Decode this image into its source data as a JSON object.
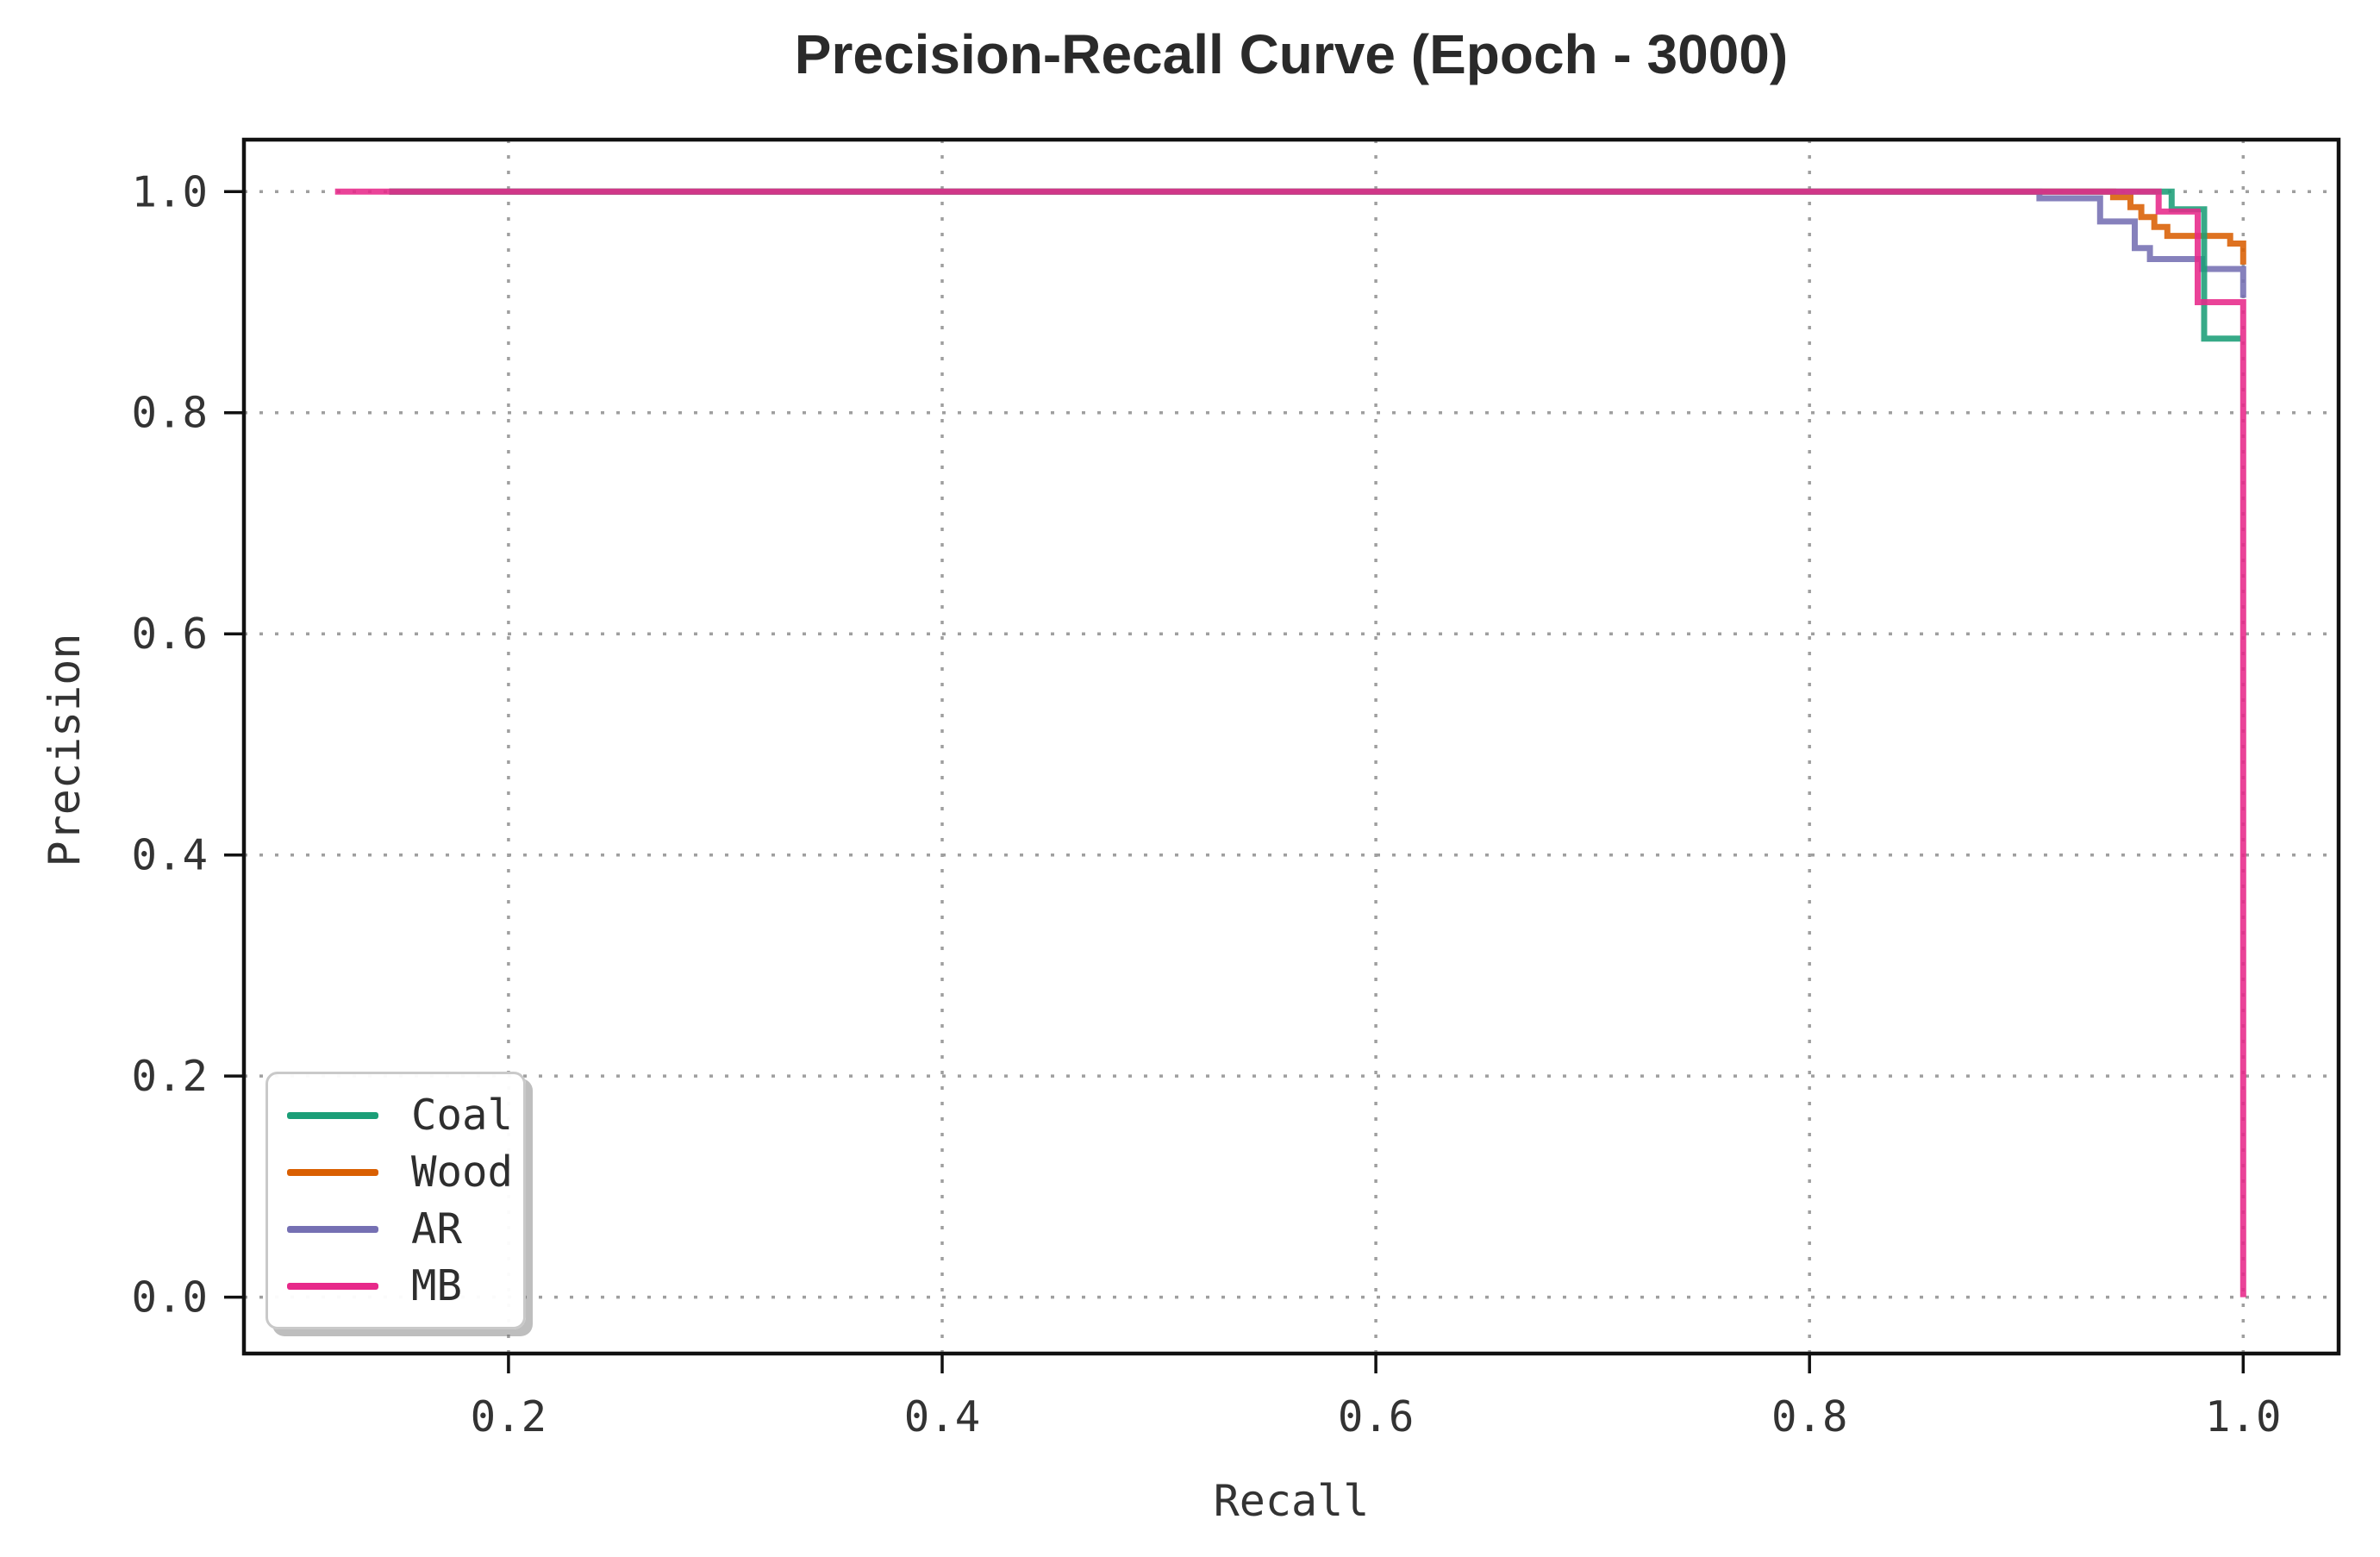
{
  "title": "Precision-Recall Curve (Epoch - 3000)",
  "chart_data": {
    "type": "line",
    "line_style": "step-post",
    "title": "Precision-Recall Curve (Epoch - 3000)",
    "xlabel": "Recall",
    "ylabel": "Precision",
    "xlim": [
      0.078,
      1.044
    ],
    "ylim": [
      -0.051,
      1.047
    ],
    "grid": "dotted",
    "legend_position": "lower left",
    "x_ticks": [
      {
        "v": 0.2,
        "label": "0.2"
      },
      {
        "v": 0.4,
        "label": "0.4"
      },
      {
        "v": 0.6,
        "label": "0.6"
      },
      {
        "v": 0.8,
        "label": "0.8"
      },
      {
        "v": 1.0,
        "label": "1.0"
      }
    ],
    "y_ticks": [
      {
        "v": 0.0,
        "label": "0.0"
      },
      {
        "v": 0.2,
        "label": "0.2"
      },
      {
        "v": 0.4,
        "label": "0.4"
      },
      {
        "v": 0.6,
        "label": "0.6"
      },
      {
        "v": 0.8,
        "label": "0.8"
      },
      {
        "v": 1.0,
        "label": "1.0"
      }
    ],
    "series": [
      {
        "name": "Coal",
        "color": "#1b9e77",
        "points": [
          [
            0.145,
            1.0
          ],
          [
            0.967,
            0.984
          ],
          [
            0.982,
            0.867
          ],
          [
            0.999,
            0.867
          ]
        ]
      },
      {
        "name": "Wood",
        "color": "#d95f02",
        "points": [
          [
            0.145,
            1.0
          ],
          [
            0.94,
            0.995
          ],
          [
            0.948,
            0.986
          ],
          [
            0.953,
            0.977
          ],
          [
            0.959,
            0.968
          ],
          [
            0.965,
            0.96
          ],
          [
            0.994,
            0.953
          ],
          [
            1.0,
            0.934
          ]
        ]
      },
      {
        "name": "AR",
        "color": "#7570b3",
        "points": [
          [
            0.145,
            1.0
          ],
          [
            0.906,
            0.994
          ],
          [
            0.934,
            0.973
          ],
          [
            0.95,
            0.949
          ],
          [
            0.957,
            0.939
          ],
          [
            0.981,
            0.93
          ],
          [
            1.0,
            0.904
          ]
        ]
      },
      {
        "name": "MB",
        "color": "#e7298a",
        "points": [
          [
            0.12,
            1.0
          ],
          [
            0.961,
            0.982
          ],
          [
            0.979,
            0.9
          ],
          [
            1.0,
            0.0
          ]
        ]
      }
    ],
    "draw_order": [
      "Wood",
      "AR",
      "Coal",
      "MB"
    ]
  }
}
